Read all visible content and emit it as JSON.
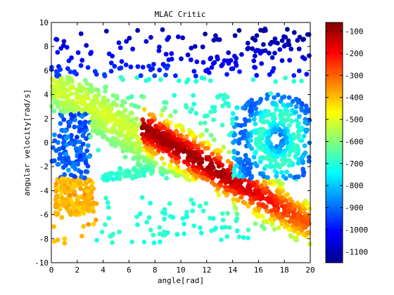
{
  "chart_data": {
    "type": "scatter",
    "title": "MLAC Critic",
    "xlabel": "angle[rad]",
    "ylabel": "angular velocity[rad/s]",
    "xlim": [
      0,
      20
    ],
    "ylim": [
      -10,
      10
    ],
    "xticks": [
      0,
      2,
      4,
      6,
      8,
      10,
      12,
      14,
      16,
      18,
      20
    ],
    "yticks": [
      -10,
      -8,
      -6,
      -4,
      -2,
      0,
      2,
      4,
      6,
      8,
      10
    ],
    "colorbar": {
      "min": -1150,
      "max": -60,
      "ticks": [
        -100,
        -200,
        -300,
        -400,
        -500,
        -600,
        -700,
        -800,
        -900,
        -1000,
        -1100
      ],
      "colormap": "jet"
    },
    "grid": false,
    "points_description": "approximately 2000 sampled state points; color encodes critic value",
    "series": [
      {
        "region": "central diagonal band",
        "x_range": [
          7.5,
          14
        ],
        "y_range": [
          -4,
          2.5
        ],
        "value": -110
      },
      {
        "region": "lower-right tail",
        "x_range": [
          13,
          20
        ],
        "y_range": [
          -6,
          -3
        ],
        "value": -230
      },
      {
        "region": "upper-left yellow band",
        "x_range": [
          0.5,
          8
        ],
        "y_range": [
          -2,
          5
        ],
        "value": -520
      },
      {
        "region": "lower-left orange cluster",
        "x_range": [
          0,
          3
        ],
        "y_range": [
          -6,
          -3
        ],
        "value": -380
      },
      {
        "region": "right vortex",
        "x_range": [
          14,
          20
        ],
        "y_range": [
          -3,
          4
        ],
        "value": -880
      },
      {
        "region": "scattered upper outliers",
        "x_range": [
          0,
          20
        ],
        "y_range": [
          5,
          9.5
        ],
        "value": -1050
      }
    ]
  }
}
